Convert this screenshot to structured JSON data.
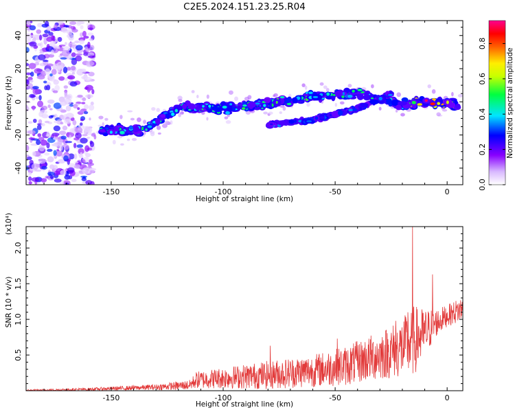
{
  "title": "C2E5.2024.151.23.25.R04",
  "colors": {
    "snr_line": "#e23a3a",
    "axis": "#000000"
  },
  "chart_data": [
    {
      "type": "heatmap",
      "xlabel": "Height of straight line (km)",
      "ylabel": "Frequency (Hz)",
      "xlim": [
        -188,
        7
      ],
      "ylim": [
        -50,
        49
      ],
      "xticks": [
        -150,
        -100,
        -50,
        0
      ],
      "yticks": [
        -40,
        -20,
        0,
        20,
        40
      ],
      "colorbar": {
        "label": "Normalized spectral amplitude",
        "range": [
          0,
          0.93
        ],
        "ticks": [
          0.0,
          0.2,
          0.4,
          0.6,
          0.8
        ],
        "colormap": "rainbow (white-purple-blue-cyan-green-yellow-red-magenta)"
      },
      "ridge": {
        "description": "dominant echo band",
        "points": [
          {
            "x": -155,
            "y": -17,
            "amp": 0.45
          },
          {
            "x": -135,
            "y": -17,
            "amp": 0.5
          },
          {
            "x": -120,
            "y": -3,
            "amp": 0.5
          },
          {
            "x": -100,
            "y": -4,
            "amp": 0.5
          },
          {
            "x": -80,
            "y": -1,
            "amp": 0.55
          },
          {
            "x": -60,
            "y": 3,
            "amp": 0.55
          },
          {
            "x": -40,
            "y": 5,
            "amp": 0.5
          },
          {
            "x": -20,
            "y": -2,
            "amp": 0.55
          },
          {
            "x": -10,
            "y": 0,
            "amp": 0.9
          },
          {
            "x": 0,
            "y": -1,
            "amp": 0.85
          },
          {
            "x": 5,
            "y": -2,
            "amp": 0.7
          }
        ]
      },
      "secondary_band": {
        "points": [
          {
            "x": -80,
            "y": -14
          },
          {
            "x": -60,
            "y": -11
          },
          {
            "x": -40,
            "y": -4
          },
          {
            "x": -25,
            "y": 5
          }
        ]
      },
      "noise_region": {
        "x_range": [
          -188,
          -158
        ],
        "y_range": [
          -50,
          49
        ]
      }
    },
    {
      "type": "line",
      "xlabel": "Height of straight line (km)",
      "ylabel": "SNR (10 * v/v)",
      "scale_label": "(x10⁴)",
      "xlim": [
        -188,
        7
      ],
      "ylim": [
        0,
        2.3
      ],
      "xticks": [
        -150,
        -100,
        -50,
        0
      ],
      "yticks": [
        0.5,
        1.0,
        1.5,
        2.0
      ],
      "envelope": {
        "x": [
          -188,
          -160,
          -130,
          -115,
          -112,
          -100,
          -80,
          -60,
          -45,
          -35,
          -25,
          -20,
          -15,
          -10,
          -5,
          0,
          7
        ],
        "mean": [
          0.005,
          0.02,
          0.05,
          0.08,
          0.15,
          0.18,
          0.22,
          0.28,
          0.35,
          0.45,
          0.55,
          0.6,
          0.7,
          0.8,
          0.95,
          1.05,
          1.15
        ],
        "amp": [
          0.01,
          0.02,
          0.04,
          0.07,
          0.12,
          0.15,
          0.2,
          0.23,
          0.28,
          0.32,
          0.38,
          0.42,
          0.5,
          0.35,
          0.2,
          0.15,
          0.18
        ]
      },
      "spikes": [
        {
          "x": -15.5,
          "y": 2.3
        },
        {
          "x": -6.5,
          "y": 1.63
        },
        {
          "x": -17.5,
          "y": 1.1
        },
        {
          "x": -23,
          "y": 0.98
        },
        {
          "x": -49,
          "y": 0.73
        },
        {
          "x": -79,
          "y": 0.63
        }
      ]
    }
  ]
}
